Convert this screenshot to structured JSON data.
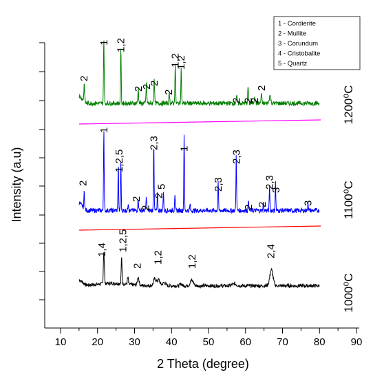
{
  "chart_data": {
    "type": "line",
    "xlabel": "2 Theta (degree)",
    "ylabel": "Intensity (a.u)",
    "xlim": [
      5,
      90
    ],
    "x_ticks": [
      "10",
      "20",
      "30",
      "40",
      "50",
      "60",
      "70",
      "80",
      "90"
    ],
    "y_ticks_labeled": false,
    "legend": {
      "placement": "top-right",
      "entries": [
        "1 - Cordierite",
        "2 - Mullite",
        "3 - Corundum",
        "4 - Cristobalite",
        "5 - Quartz"
      ]
    },
    "series": [
      {
        "name": "1000⁰C",
        "color": "#000000",
        "baseline": 0.5,
        "peaks": [
          {
            "x": 21.7,
            "h": 3.3,
            "w": 0.18
          },
          {
            "x": 26.5,
            "h": 2.6,
            "w": 0.16
          },
          {
            "x": 28.2,
            "h": 0.7,
            "w": 0.18
          },
          {
            "x": 31.0,
            "h": 0.8,
            "w": 0.3
          },
          {
            "x": 35.5,
            "h": 0.7,
            "w": 0.5
          },
          {
            "x": 36.5,
            "h": 0.6,
            "w": 0.5
          },
          {
            "x": 38.0,
            "h": 0.3,
            "w": 0.6
          },
          {
            "x": 42.6,
            "h": 0.2,
            "w": 0.4
          },
          {
            "x": 45.5,
            "h": 0.55,
            "w": 0.6
          },
          {
            "x": 57.0,
            "h": 0.2,
            "w": 0.8
          },
          {
            "x": 67.0,
            "h": 1.6,
            "w": 0.6
          }
        ],
        "annotations": [
          {
            "text": "1,4",
            "x": 21.2
          },
          {
            "text": "1,2,5",
            "x": 26.8
          },
          {
            "text": "2",
            "x": 30.7
          },
          {
            "text": "1,2",
            "x": 36.3
          },
          {
            "text": "1,2",
            "x": 45.5
          },
          {
            "text": "2,4",
            "x": 66.8
          }
        ]
      },
      {
        "name": "1100⁰C",
        "color": "#0000ff",
        "baseline": 0.5,
        "peaks": [
          {
            "x": 16.4,
            "h": 1.4,
            "w": 0.12
          },
          {
            "x": 21.7,
            "h": 6.4,
            "w": 0.12
          },
          {
            "x": 25.6,
            "h": 3.6,
            "w": 0.12
          },
          {
            "x": 26.3,
            "h": 3.8,
            "w": 0.12
          },
          {
            "x": 28.3,
            "h": 0.6,
            "w": 0.15
          },
          {
            "x": 31.0,
            "h": 0.9,
            "w": 0.15
          },
          {
            "x": 33.2,
            "h": 1.0,
            "w": 0.15
          },
          {
            "x": 35.2,
            "h": 5.3,
            "w": 0.12
          },
          {
            "x": 36.2,
            "h": 1.3,
            "w": 0.12
          },
          {
            "x": 37.8,
            "h": 1.5,
            "w": 0.12
          },
          {
            "x": 40.9,
            "h": 1.3,
            "w": 0.12
          },
          {
            "x": 43.4,
            "h": 5.9,
            "w": 0.12
          },
          {
            "x": 45.0,
            "h": 0.5,
            "w": 0.12
          },
          {
            "x": 52.6,
            "h": 2.3,
            "w": 0.12
          },
          {
            "x": 57.5,
            "h": 4.3,
            "w": 0.12
          },
          {
            "x": 60.8,
            "h": 0.9,
            "w": 0.12
          },
          {
            "x": 64.8,
            "h": 0.6,
            "w": 0.12
          },
          {
            "x": 66.5,
            "h": 1.9,
            "w": 0.12
          },
          {
            "x": 68.1,
            "h": 2.2,
            "w": 0.12
          },
          {
            "x": 76.9,
            "h": 0.7,
            "w": 0.12
          }
        ],
        "annotations": [
          {
            "text": "2",
            "x": 16.0
          },
          {
            "text": "1",
            "x": 21.7
          },
          {
            "text": "1,2,5",
            "x": 25.8
          },
          {
            "text": "2",
            "x": 30.5
          },
          {
            "text": "2",
            "x": 33.0
          },
          {
            "text": "2,3",
            "x": 35.2
          },
          {
            "text": "5",
            "x": 37.3
          },
          {
            "text": "2",
            "x": 36.5
          },
          {
            "text": "1",
            "x": 43.4
          },
          {
            "text": "2,3",
            "x": 52.6
          },
          {
            "text": "2,3",
            "x": 57.5
          },
          {
            "text": "2",
            "x": 60.8
          },
          {
            "text": "2",
            "x": 64.5
          },
          {
            "text": "2,3",
            "x": 66.5
          },
          {
            "text": "3",
            "x": 68.2
          },
          {
            "text": "3",
            "x": 76.9
          }
        ]
      },
      {
        "name": "1200⁰C",
        "color": "#007f00",
        "baseline": 0.6,
        "peaks": [
          {
            "x": 16.4,
            "h": 1.4,
            "w": 0.15
          },
          {
            "x": 21.7,
            "h": 5.2,
            "w": 0.13
          },
          {
            "x": 26.3,
            "h": 4.4,
            "w": 0.13
          },
          {
            "x": 31.0,
            "h": 1.2,
            "w": 0.15
          },
          {
            "x": 33.2,
            "h": 1.6,
            "w": 0.15
          },
          {
            "x": 35.3,
            "h": 2.0,
            "w": 0.15
          },
          {
            "x": 39.4,
            "h": 0.8,
            "w": 0.15
          },
          {
            "x": 41.0,
            "h": 3.1,
            "w": 0.13
          },
          {
            "x": 42.6,
            "h": 2.7,
            "w": 0.13
          },
          {
            "x": 57.6,
            "h": 0.5,
            "w": 0.2
          },
          {
            "x": 60.7,
            "h": 1.3,
            "w": 0.15
          },
          {
            "x": 62.5,
            "h": 0.6,
            "w": 0.2
          },
          {
            "x": 64.3,
            "h": 0.8,
            "w": 0.15
          },
          {
            "x": 66.6,
            "h": 0.6,
            "w": 0.3
          }
        ],
        "annotations": [
          {
            "text": "2",
            "x": 16.3
          },
          {
            "text": "1",
            "x": 21.7
          },
          {
            "text": "1,2",
            "x": 26.3
          },
          {
            "text": "2",
            "x": 31.0
          },
          {
            "text": "2",
            "x": 33.3
          },
          {
            "text": "2",
            "x": 35.3
          },
          {
            "text": "2",
            "x": 39.2
          },
          {
            "text": "1,2",
            "x": 41.0
          },
          {
            "text": "1,2",
            "x": 42.6
          },
          {
            "text": "2",
            "x": 57.5
          },
          {
            "text": "2",
            "x": 60.7
          },
          {
            "text": "2",
            "x": 62.5
          },
          {
            "text": "2",
            "x": 64.3
          }
        ]
      }
    ],
    "reference_lines": [
      {
        "color": "#ff0000"
      },
      {
        "color": "#ff00ff"
      }
    ]
  }
}
